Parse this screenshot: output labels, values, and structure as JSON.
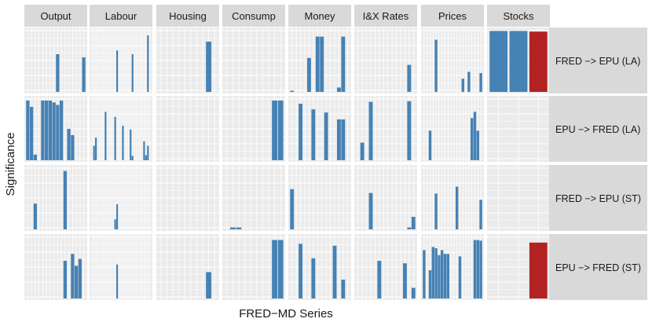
{
  "colors": {
    "bar_blue": "#4682b4",
    "bar_red": "#b22222",
    "panel_bg": "#ebebeb",
    "strip_bg": "#d9d9d9",
    "grid": "#ffffff",
    "text": "#1a1a1a"
  },
  "chart_data": {
    "type": "bar",
    "layout": "faceted grid (rows x columns), free x, shared y",
    "title": "",
    "xlabel": "FRED−MD Series",
    "ylabel": "Significance",
    "ylim": [
      0,
      1
    ],
    "columns": [
      "Output",
      "Labour",
      "Housing",
      "Consump",
      "Money",
      "I&X Rates",
      "Prices",
      "Stocks"
    ],
    "rows": [
      "FRED −> EPU (LA)",
      "EPU −> FRED (LA)",
      "FRED −> EPU (ST)",
      "EPU −> FRED (ST)"
    ],
    "series_per_column": {
      "Output": 16,
      "Labour": 31,
      "Housing": 10,
      "Consump": 10,
      "Money": 14,
      "I&X Rates": 14,
      "Prices": 20,
      "Stocks": 3
    },
    "panels": [
      [
        {
          "column": "Output",
          "values": [
            0,
            0,
            0,
            0,
            0,
            0,
            0,
            0,
            0.6,
            0,
            0,
            0,
            0,
            0,
            0,
            0.55
          ]
        },
        {
          "column": "Labour",
          "values": [
            0,
            0,
            0,
            0,
            0,
            0,
            0,
            0,
            0,
            0,
            0,
            0,
            0,
            0.66,
            0,
            0,
            0,
            0,
            0,
            0,
            0,
            0.6,
            0,
            0,
            0,
            0,
            0,
            0,
            0,
            0.9,
            0
          ]
        },
        {
          "column": "Housing",
          "values": [
            0,
            0,
            0,
            0,
            0,
            0,
            0,
            0,
            0.8,
            0
          ]
        },
        {
          "column": "Consump",
          "values": [
            0,
            0,
            0,
            0,
            0,
            0,
            0,
            0,
            0,
            0
          ]
        },
        {
          "column": "Money",
          "values": [
            0.02,
            0,
            0,
            0,
            0.54,
            0,
            0.88,
            0.88,
            0,
            0,
            0,
            0.07,
            0.88,
            0
          ]
        },
        {
          "column": "I&X Rates",
          "values": [
            0,
            0,
            0,
            0,
            0,
            0,
            0,
            0,
            0,
            0,
            0,
            0,
            0.43,
            0
          ]
        },
        {
          "column": "Prices",
          "values": [
            0,
            0,
            0,
            0,
            0.83,
            0,
            0,
            0,
            0,
            0,
            0,
            0,
            0,
            0.21,
            0,
            0.32,
            0,
            0,
            0,
            0.3
          ]
        },
        {
          "column": "Stocks",
          "values": [
            0.97,
            0.97,
            0.96
          ],
          "colors": [
            "blue",
            "blue",
            "red"
          ]
        }
      ],
      [
        {
          "column": "Output",
          "values": [
            0.95,
            0.85,
            0.09,
            0,
            0.95,
            0.95,
            0.95,
            0.92,
            0.88,
            0.95,
            0,
            0.5,
            0.4,
            0,
            0,
            0
          ]
        },
        {
          "column": "Labour",
          "values": [
            0,
            0.23,
            0.36,
            0,
            0,
            0,
            0,
            0.77,
            0,
            0,
            0,
            0,
            0.69,
            0,
            0,
            0,
            0.55,
            0,
            0,
            0,
            0.49,
            0.07,
            0,
            0,
            0,
            0,
            0,
            0.3,
            0.08,
            0.23,
            0
          ]
        },
        {
          "column": "Housing",
          "values": [
            0,
            0,
            0,
            0,
            0,
            0,
            0,
            0,
            0,
            0
          ]
        },
        {
          "column": "Consump",
          "values": [
            0,
            0,
            0,
            0,
            0,
            0,
            0,
            0,
            0.95,
            0.95
          ]
        },
        {
          "column": "Money",
          "values": [
            0,
            0,
            0.9,
            0,
            0,
            0.81,
            0,
            0,
            0.76,
            0,
            0,
            0.65,
            0.65,
            0
          ]
        },
        {
          "column": "I&X Rates",
          "values": [
            0,
            0.28,
            0,
            0.93,
            0,
            0,
            0,
            0,
            0,
            0,
            0,
            0,
            0.94,
            0
          ]
        },
        {
          "column": "Prices",
          "values": [
            0,
            0,
            0.47,
            0,
            0,
            0,
            0,
            0,
            0,
            0,
            0,
            0,
            0,
            0,
            0,
            0,
            0.67,
            0.77,
            0.47,
            0
          ]
        },
        {
          "column": "Stocks",
          "values": [
            0,
            0,
            0
          ],
          "colors": [
            "blue",
            "blue",
            "blue"
          ]
        }
      ],
      [
        {
          "column": "Output",
          "values": [
            0,
            0,
            0.41,
            0,
            0,
            0,
            0,
            0,
            0,
            0,
            0.93,
            0,
            0,
            0,
            0,
            0
          ]
        },
        {
          "column": "Labour",
          "values": [
            0,
            0,
            0,
            0,
            0,
            0,
            0,
            0,
            0,
            0,
            0,
            0,
            0.16,
            0.4,
            0,
            0,
            0,
            0,
            0,
            0,
            0,
            0,
            0,
            0,
            0,
            0,
            0,
            0,
            0,
            0,
            0
          ]
        },
        {
          "column": "Housing",
          "values": [
            0,
            0,
            0,
            0,
            0,
            0,
            0,
            0,
            0,
            0
          ]
        },
        {
          "column": "Consump",
          "values": [
            0,
            0.03,
            0.03,
            0,
            0,
            0,
            0,
            0,
            0,
            0
          ]
        },
        {
          "column": "Money",
          "values": [
            0.64,
            0,
            0,
            0,
            0,
            0,
            0,
            0,
            0,
            0,
            0,
            0,
            0,
            0
          ]
        },
        {
          "column": "I&X Rates",
          "values": [
            0,
            0,
            0,
            0.58,
            0,
            0,
            0,
            0,
            0,
            0,
            0,
            0,
            0.03,
            0.2
          ]
        },
        {
          "column": "Prices",
          "values": [
            0,
            0,
            0,
            0,
            0.57,
            0,
            0,
            0,
            0,
            0,
            0,
            0.68,
            0,
            0,
            0,
            0,
            0,
            0,
            0,
            0.47
          ]
        },
        {
          "column": "Stocks",
          "values": [
            0,
            0,
            0
          ],
          "colors": [
            "blue",
            "blue",
            "blue"
          ]
        }
      ],
      [
        {
          "column": "Output",
          "values": [
            0,
            0,
            0,
            0,
            0,
            0,
            0,
            0,
            0,
            0,
            0.6,
            0,
            0.71,
            0.52,
            0.63,
            0
          ]
        },
        {
          "column": "Labour",
          "values": [
            0,
            0,
            0,
            0,
            0,
            0,
            0,
            0,
            0,
            0,
            0,
            0,
            0,
            0.54,
            0,
            0,
            0,
            0,
            0,
            0,
            0,
            0,
            0,
            0,
            0,
            0,
            0,
            0,
            0,
            0,
            0
          ]
        },
        {
          "column": "Housing",
          "values": [
            0,
            0,
            0,
            0,
            0,
            0,
            0,
            0,
            0.42,
            0
          ]
        },
        {
          "column": "Consump",
          "values": [
            0,
            0,
            0,
            0,
            0,
            0,
            0,
            0,
            0.93,
            0.93
          ]
        },
        {
          "column": "Money",
          "values": [
            0,
            0,
            0.87,
            0,
            0,
            0.64,
            0,
            0,
            0,
            0,
            0.84,
            0,
            0.3,
            0
          ]
        },
        {
          "column": "I&X Rates",
          "values": [
            0,
            0,
            0,
            0,
            0,
            0.6,
            0,
            0,
            0,
            0,
            0,
            0.56,
            0,
            0.17
          ]
        },
        {
          "column": "Prices",
          "values": [
            0.77,
            0,
            0.45,
            0.82,
            0.8,
            0.69,
            0.77,
            0.71,
            0.71,
            0,
            0,
            0,
            0.67,
            0,
            0,
            0,
            0,
            0.93,
            0.93,
            0.92
          ]
        },
        {
          "column": "Stocks",
          "values": [
            0,
            0,
            0.89
          ],
          "colors": [
            "blue",
            "blue",
            "red"
          ]
        }
      ]
    ]
  }
}
